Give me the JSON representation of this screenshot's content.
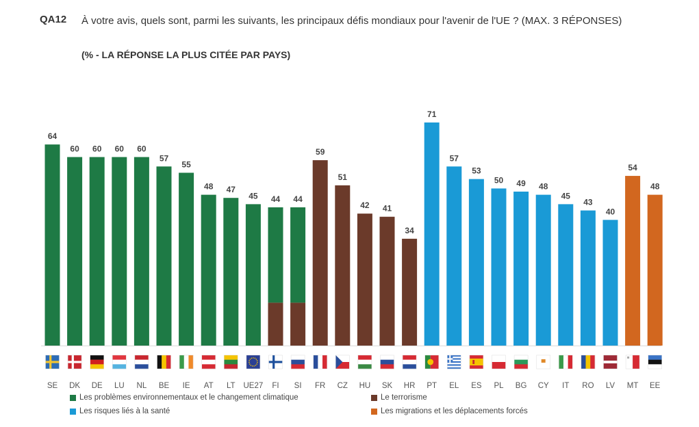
{
  "header": {
    "code": "QA12",
    "question": "À votre avis, quels sont, parmi les suivants, les principaux défis mondiaux pour l'avenir de l'UE ? (MAX. 3 RÉPONSES)",
    "subtitle": "(% - LA RÉPONSE LA PLUS CITÉE PAR PAYS)"
  },
  "colors": {
    "environment": "#1e7a45",
    "terrorism": "#6b3a2a",
    "health": "#1a9ad6",
    "migration": "#d2671f"
  },
  "legend": [
    {
      "key": "environment",
      "label": "Les problèmes environnementaux et le changement climatique"
    },
    {
      "key": "terrorism",
      "label": "Le terrorisme"
    },
    {
      "key": "health",
      "label": "Les risques liés à la santé"
    },
    {
      "key": "migration",
      "label": "Les migrations et les déplacements forcés"
    }
  ],
  "chart_data": {
    "type": "bar",
    "title": "(% - LA RÉPONSE LA PLUS CITÉE PAR PAYS)",
    "categories": [
      "SE",
      "DK",
      "DE",
      "LU",
      "NL",
      "BE",
      "IE",
      "AT",
      "LT",
      "UE27",
      "FI",
      "SI",
      "FR",
      "CZ",
      "HU",
      "SK",
      "HR",
      "PT",
      "EL",
      "ES",
      "PL",
      "BG",
      "CY",
      "IT",
      "RO",
      "LV",
      "MT",
      "EE"
    ],
    "values": [
      64,
      60,
      60,
      60,
      60,
      57,
      55,
      48,
      47,
      45,
      44,
      44,
      59,
      51,
      42,
      41,
      34,
      71,
      57,
      53,
      50,
      49,
      48,
      45,
      43,
      40,
      54,
      48
    ],
    "series_key": [
      "environment",
      "environment",
      "environment",
      "environment",
      "environment",
      "environment",
      "environment",
      "environment",
      "environment",
      "environment",
      "environment+terrorism",
      "environment+terrorism",
      "terrorism",
      "terrorism",
      "terrorism",
      "terrorism",
      "terrorism",
      "health",
      "health",
      "health",
      "health",
      "health",
      "health",
      "health",
      "health",
      "health",
      "migration",
      "migration"
    ],
    "ylim": [
      0,
      71
    ],
    "xlabel": "",
    "ylabel": ""
  }
}
